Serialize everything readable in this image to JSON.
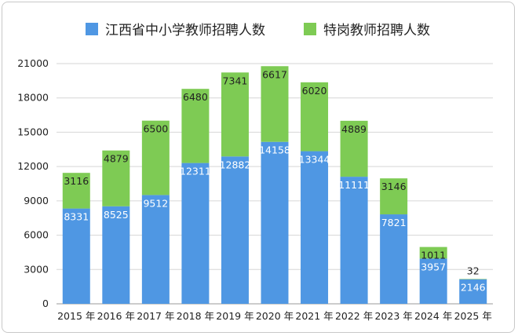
{
  "chart_data": {
    "type": "bar",
    "stacked": true,
    "title": "",
    "xlabel": "",
    "ylabel": "",
    "categories": [
      "2015 年",
      "2016 年",
      "2017 年",
      "2018 年",
      "2019 年",
      "2020 年",
      "2021 年",
      "2022 年",
      "2023 年",
      "2024 年",
      "2025 年"
    ],
    "series": [
      {
        "name": "江西省中小学教师招聘人数",
        "color": "#4f97e3",
        "values": [
          8331,
          8525,
          9512,
          12311,
          12882,
          14158,
          13344,
          11111,
          7821,
          3957,
          2146
        ]
      },
      {
        "name": "特岗教师招聘人数",
        "color": "#7ecb54",
        "values": [
          3116,
          4879,
          6500,
          6480,
          7341,
          6617,
          6020,
          4889,
          3146,
          1011,
          32
        ]
      }
    ],
    "ylim": [
      0,
      21000
    ],
    "yticks": [
      0,
      3000,
      6000,
      9000,
      12000,
      15000,
      18000,
      21000
    ],
    "grid": true,
    "legend_position": "top"
  }
}
